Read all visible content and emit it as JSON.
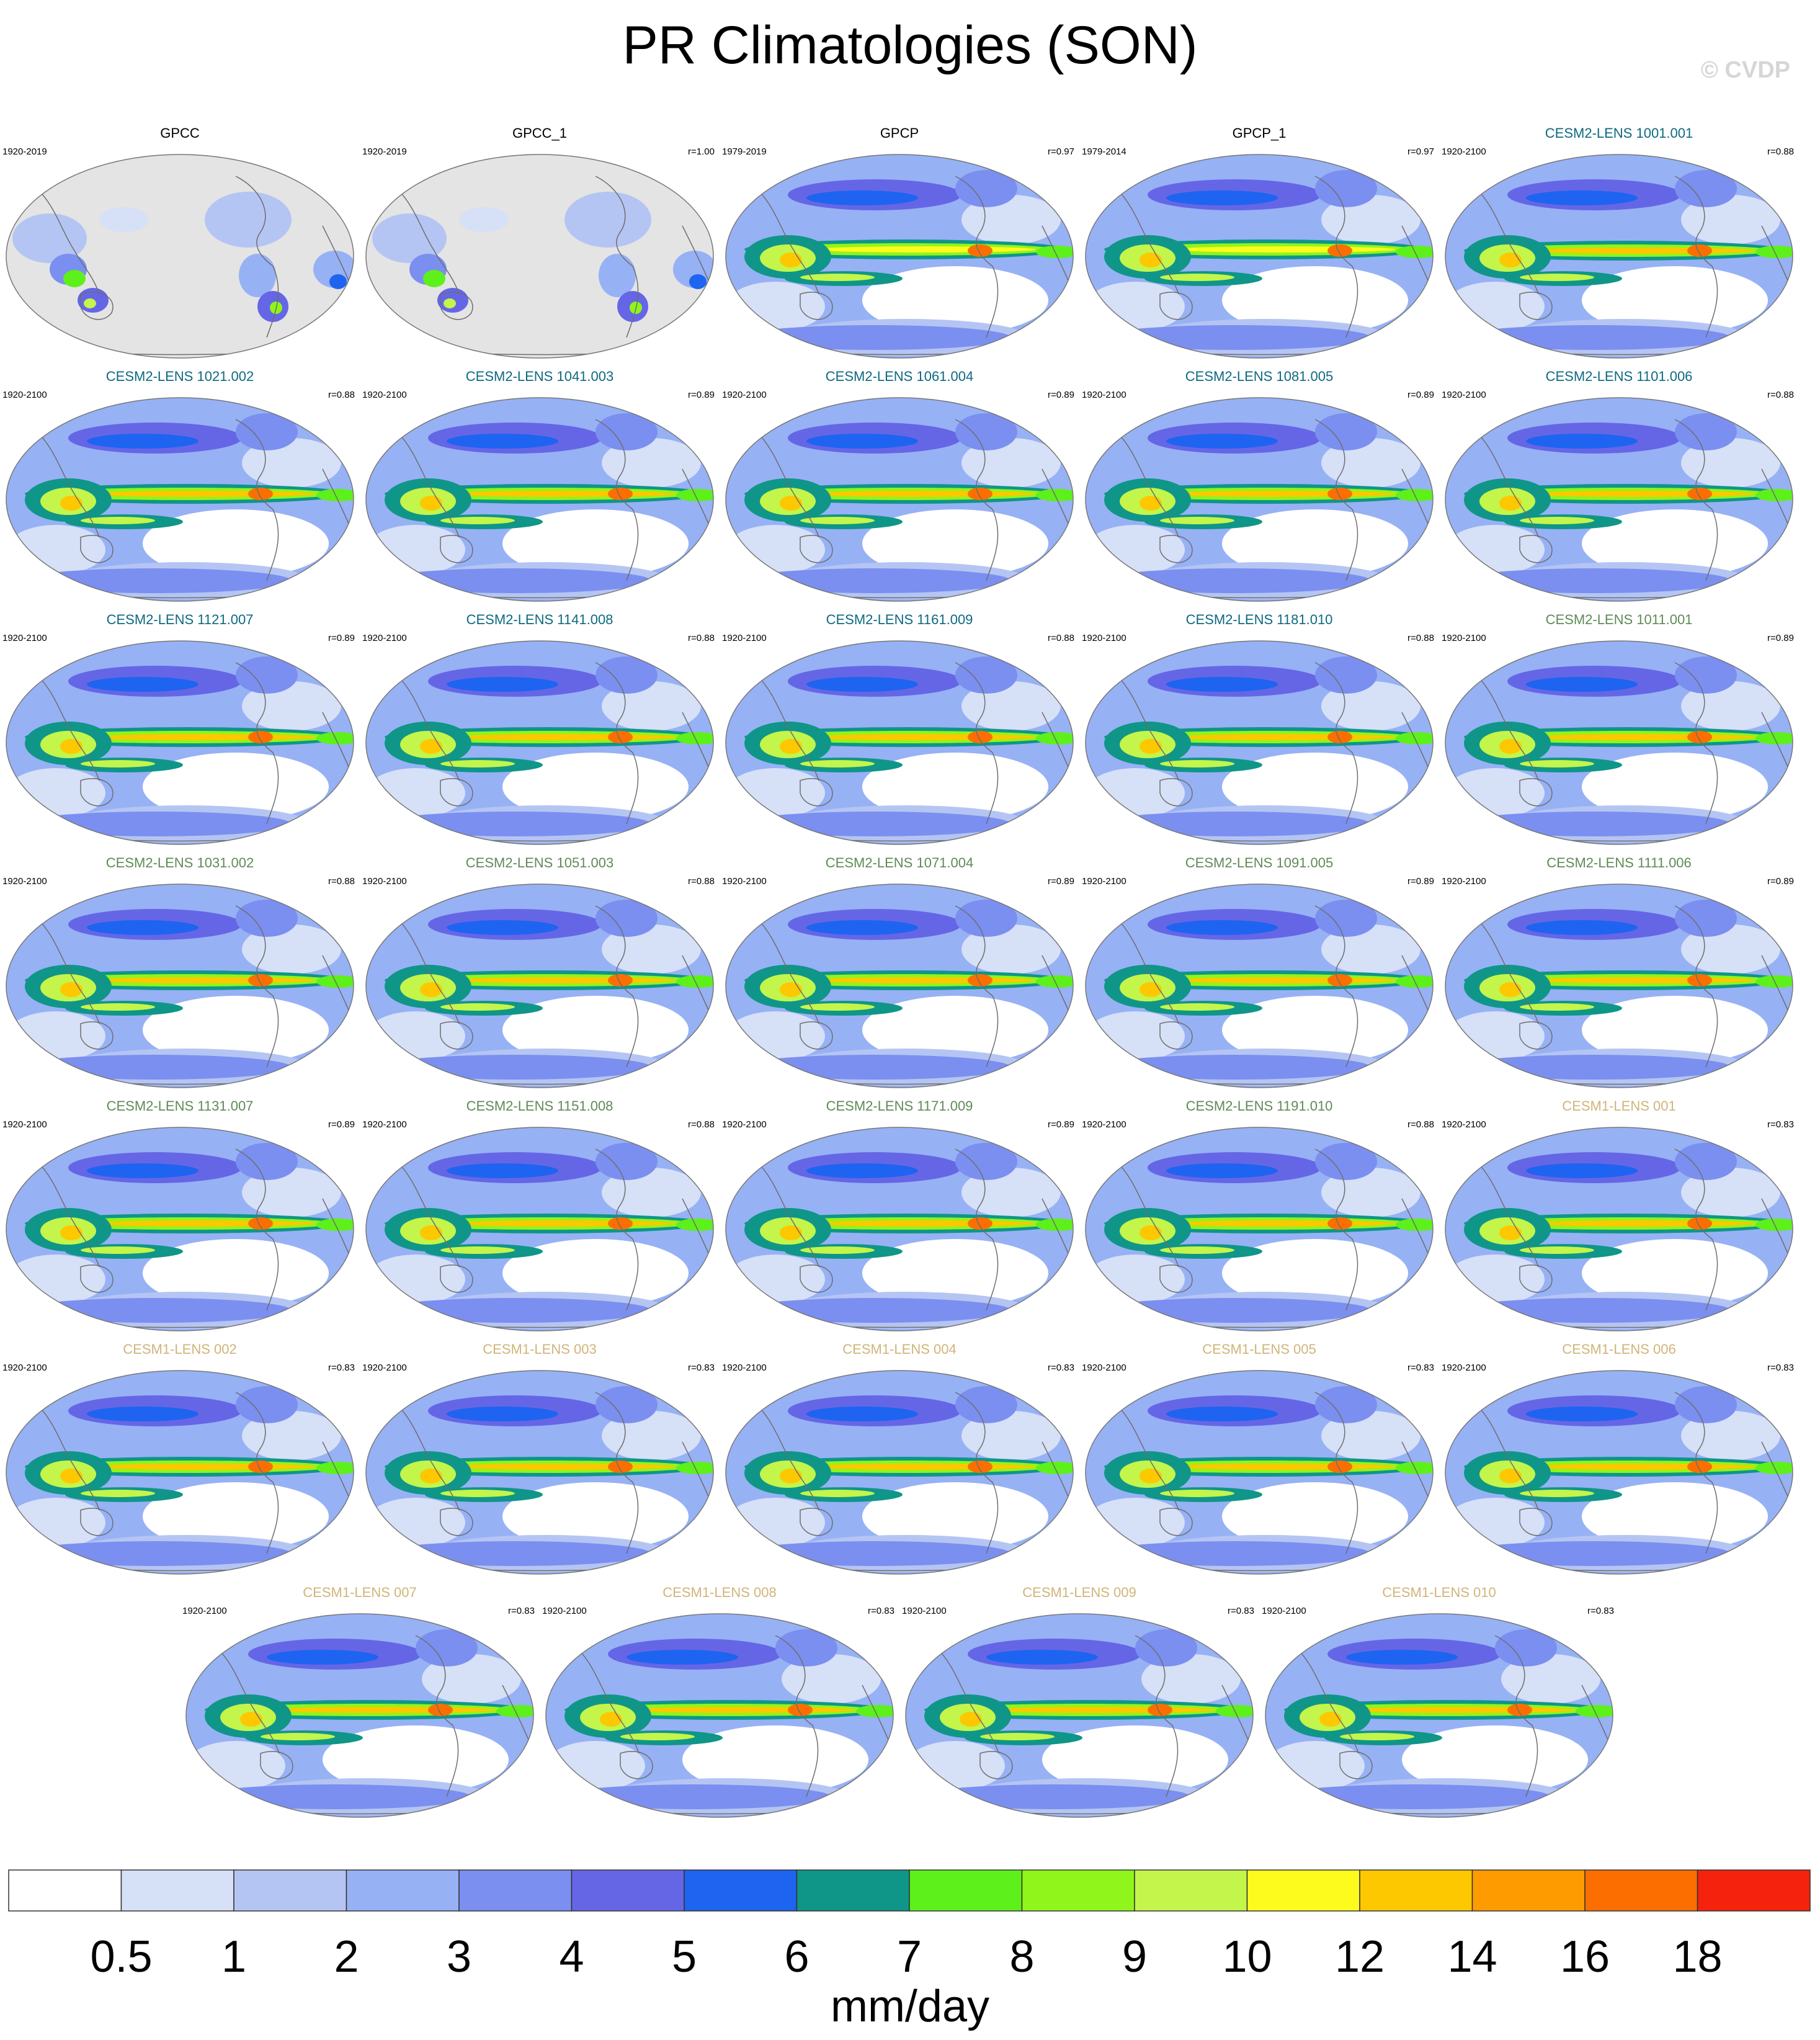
{
  "title": "PR Climatologies (SON)",
  "watermark": "© CVDP",
  "chart_data": {
    "type": "map-panel-grid",
    "variable": "PR",
    "season": "SON",
    "colorbar": {
      "units": "mm/day",
      "levels": [
        0.5,
        1,
        2,
        3,
        4,
        5,
        6,
        7,
        8,
        9,
        10,
        12,
        14,
        16,
        18
      ],
      "colors": [
        "#ffffff",
        "#d6e0f7",
        "#b5c5f3",
        "#97b1f5",
        "#7b8ff0",
        "#6566e6",
        "#1e64f0",
        "#0f9688",
        "#5ef01a",
        "#8ff51a",
        "#c3f54b",
        "#fdfb1e",
        "#fdc800",
        "#fd9b00",
        "#fd6e00",
        "#f5220d"
      ]
    },
    "panels": [
      {
        "name": "GPCC",
        "years": "1920-2019",
        "r": "",
        "group": "obs",
        "map": "gpcc"
      },
      {
        "name": "GPCC_1",
        "years": "1920-2019",
        "r": "r=1.00",
        "group": "obs",
        "map": "gpcc"
      },
      {
        "name": "GPCP",
        "years": "1979-2019",
        "r": "r=0.97",
        "group": "obs",
        "map": "gpcp"
      },
      {
        "name": "GPCP_1",
        "years": "1979-2014",
        "r": "r=0.97",
        "group": "obs",
        "map": "gpcp"
      },
      {
        "name": "CESM2-LENS 1001.001",
        "years": "1920-2100",
        "r": "r=0.88",
        "group": "cesm2a",
        "map": "model"
      },
      {
        "name": "CESM2-LENS 1021.002",
        "years": "1920-2100",
        "r": "r=0.88",
        "group": "cesm2a",
        "map": "model"
      },
      {
        "name": "CESM2-LENS 1041.003",
        "years": "1920-2100",
        "r": "r=0.89",
        "group": "cesm2a",
        "map": "model"
      },
      {
        "name": "CESM2-LENS 1061.004",
        "years": "1920-2100",
        "r": "r=0.89",
        "group": "cesm2a",
        "map": "model"
      },
      {
        "name": "CESM2-LENS 1081.005",
        "years": "1920-2100",
        "r": "r=0.89",
        "group": "cesm2a",
        "map": "model"
      },
      {
        "name": "CESM2-LENS 1101.006",
        "years": "1920-2100",
        "r": "r=0.88",
        "group": "cesm2a",
        "map": "model"
      },
      {
        "name": "CESM2-LENS 1121.007",
        "years": "1920-2100",
        "r": "r=0.89",
        "group": "cesm2a",
        "map": "model"
      },
      {
        "name": "CESM2-LENS 1141.008",
        "years": "1920-2100",
        "r": "r=0.88",
        "group": "cesm2a",
        "map": "model"
      },
      {
        "name": "CESM2-LENS 1161.009",
        "years": "1920-2100",
        "r": "r=0.88",
        "group": "cesm2a",
        "map": "model"
      },
      {
        "name": "CESM2-LENS 1181.010",
        "years": "1920-2100",
        "r": "r=0.88",
        "group": "cesm2a",
        "map": "model"
      },
      {
        "name": "CESM2-LENS 1011.001",
        "years": "1920-2100",
        "r": "r=0.89",
        "group": "cesm2b",
        "map": "model"
      },
      {
        "name": "CESM2-LENS 1031.002",
        "years": "1920-2100",
        "r": "r=0.88",
        "group": "cesm2b",
        "map": "model"
      },
      {
        "name": "CESM2-LENS 1051.003",
        "years": "1920-2100",
        "r": "r=0.88",
        "group": "cesm2b",
        "map": "model"
      },
      {
        "name": "CESM2-LENS 1071.004",
        "years": "1920-2100",
        "r": "r=0.89",
        "group": "cesm2b",
        "map": "model"
      },
      {
        "name": "CESM2-LENS 1091.005",
        "years": "1920-2100",
        "r": "r=0.89",
        "group": "cesm2b",
        "map": "model"
      },
      {
        "name": "CESM2-LENS 1111.006",
        "years": "1920-2100",
        "r": "r=0.89",
        "group": "cesm2b",
        "map": "model"
      },
      {
        "name": "CESM2-LENS 1131.007",
        "years": "1920-2100",
        "r": "r=0.89",
        "group": "cesm2b",
        "map": "model"
      },
      {
        "name": "CESM2-LENS 1151.008",
        "years": "1920-2100",
        "r": "r=0.88",
        "group": "cesm2b",
        "map": "model"
      },
      {
        "name": "CESM2-LENS 1171.009",
        "years": "1920-2100",
        "r": "r=0.89",
        "group": "cesm2b",
        "map": "model"
      },
      {
        "name": "CESM2-LENS 1191.010",
        "years": "1920-2100",
        "r": "r=0.88",
        "group": "cesm2b",
        "map": "model"
      },
      {
        "name": "CESM1-LENS 001",
        "years": "1920-2100",
        "r": "r=0.83",
        "group": "cesm1",
        "map": "model"
      },
      {
        "name": "CESM1-LENS 002",
        "years": "1920-2100",
        "r": "r=0.83",
        "group": "cesm1",
        "map": "model"
      },
      {
        "name": "CESM1-LENS 003",
        "years": "1920-2100",
        "r": "r=0.83",
        "group": "cesm1",
        "map": "model"
      },
      {
        "name": "CESM1-LENS 004",
        "years": "1920-2100",
        "r": "r=0.83",
        "group": "cesm1",
        "map": "model"
      },
      {
        "name": "CESM1-LENS 005",
        "years": "1920-2100",
        "r": "r=0.83",
        "group": "cesm1",
        "map": "model"
      },
      {
        "name": "CESM1-LENS 006",
        "years": "1920-2100",
        "r": "r=0.83",
        "group": "cesm1",
        "map": "model"
      },
      {
        "name": "CESM1-LENS 007",
        "years": "1920-2100",
        "r": "r=0.83",
        "group": "cesm1",
        "map": "model"
      },
      {
        "name": "CESM1-LENS 008",
        "years": "1920-2100",
        "r": "r=0.83",
        "group": "cesm1",
        "map": "model"
      },
      {
        "name": "CESM1-LENS 009",
        "years": "1920-2100",
        "r": "r=0.83",
        "group": "cesm1",
        "map": "model"
      },
      {
        "name": "CESM1-LENS 010",
        "years": "1920-2100",
        "r": "r=0.83",
        "group": "cesm1",
        "map": "model"
      }
    ],
    "group_title_colors": {
      "obs": "#000000",
      "cesm2a": "#0e6980",
      "cesm2b": "#5f8a57",
      "cesm1": "#cfb57a"
    }
  }
}
